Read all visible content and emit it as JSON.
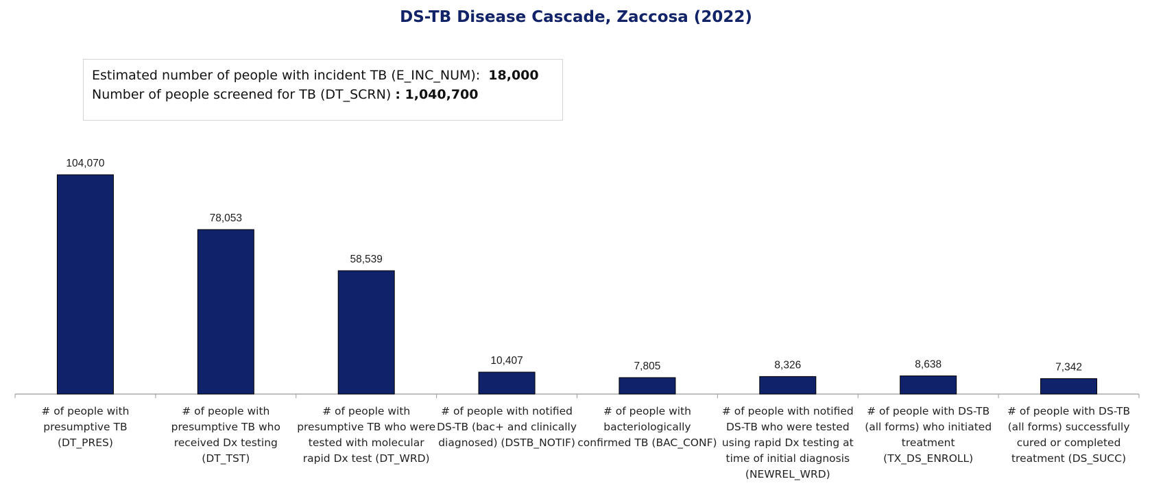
{
  "chart_data": {
    "type": "bar",
    "title": "DS-TB Disease Cascade, Zaccosa (2022)",
    "info": [
      {
        "label": "Estimated number of people with incident TB (E_INC_NUM):",
        "value": "18,000"
      },
      {
        "label": "Number of people screened for TB (DT_SCRN)",
        "value": ": 1,040,700"
      }
    ],
    "categories": [
      "# of people with presumptive TB (DT_PRES)",
      "# of people with presumptive TB who received Dx testing (DT_TST)",
      "# of people with presumptive TB who were tested with molecular rapid Dx test (DT_WRD)",
      "# of people with notified DS-TB (bac+ and clinically diagnosed) (DSTB_NOTIF)",
      "# of people with bacteriologically confirmed TB (BAC_CONF)",
      "# of people with notified DS-TB who were tested using rapid Dx testing at time of initial diagnosis (NEWREL_WRD)",
      "# of people with DS-TB (all forms) who initiated treatment (TX_DS_ENROLL)",
      "# of people with DS-TB (all forms) successfully cured or completed treatment (DS_SUCC)"
    ],
    "values": [
      104070,
      78053,
      58539,
      10407,
      7805,
      8326,
      8638,
      7342
    ],
    "value_labels": [
      "104,070",
      "78,053",
      "58,539",
      "10,407",
      "7,805",
      "8,326",
      "8,638",
      "7,342"
    ],
    "ylim": [
      0,
      104070
    ],
    "xlabel": "",
    "ylabel": "",
    "grid": false,
    "legend": "none",
    "colors": {
      "bar": "#10226a",
      "title": "#122467",
      "axis": "#999999"
    }
  }
}
